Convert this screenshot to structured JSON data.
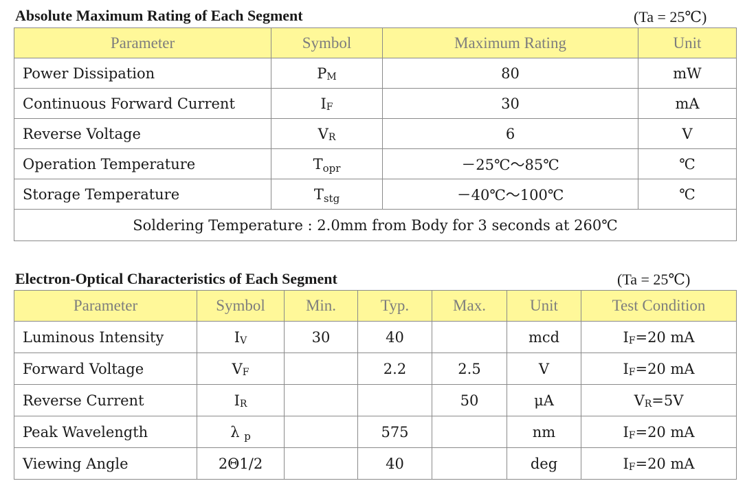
{
  "absolute_max": {
    "title": "Absolute Maximum Rating of Each Segment",
    "ta_note": "(Ta = 25℃)",
    "headers": [
      "Parameter",
      "Symbol",
      "Maximum Rating",
      "Unit"
    ],
    "rows": [
      {
        "parameter": "Power Dissipation",
        "symbol_main": "P",
        "symbol_sub": "M",
        "rating": "80",
        "unit": "mW"
      },
      {
        "parameter": "Continuous Forward Current",
        "symbol_main": "I",
        "symbol_sub": "F",
        "rating": "30",
        "unit": "mA"
      },
      {
        "parameter": "Reverse Voltage",
        "symbol_main": "V",
        "symbol_sub": "R",
        "rating": "6",
        "unit": "V"
      },
      {
        "parameter": "Operation Temperature",
        "symbol_main": "T",
        "symbol_sub": "opr",
        "rating": "－25℃～85℃",
        "unit": "℃"
      },
      {
        "parameter": "Storage Temperature",
        "symbol_main": "T",
        "symbol_sub": "stg",
        "rating": "－40℃～100℃",
        "unit": "℃"
      }
    ],
    "note": "Soldering Temperature : 2.0mm from Body for 3 seconds at 260℃"
  },
  "electro_optical": {
    "title": "Electron-Optical Characteristics of Each Segment",
    "ta_note": "(Ta = 25℃)",
    "headers": [
      "Parameter",
      "Symbol",
      "Min.",
      "Typ.",
      "Max.",
      "Unit",
      "Test Condition"
    ],
    "rows": [
      {
        "parameter": "Luminous Intensity",
        "symbol_main": "I",
        "symbol_sub": "V",
        "min": "30",
        "typ": "40",
        "max": "",
        "unit": "mcd",
        "cond_main": "I",
        "cond_sub": "F",
        "cond_rest": "=20 mA"
      },
      {
        "parameter": "Forward Voltage",
        "symbol_main": "V",
        "symbol_sub": "F",
        "min": "",
        "typ": "2.2",
        "max": "2.5",
        "unit": "V",
        "cond_main": "I",
        "cond_sub": "F",
        "cond_rest": "=20 mA"
      },
      {
        "parameter": "Reverse Current",
        "symbol_main": "I",
        "symbol_sub": "R",
        "min": "",
        "typ": "",
        "max": "50",
        "unit": "μA",
        "cond_main": "V",
        "cond_sub": "R",
        "cond_rest": "=5V"
      },
      {
        "parameter": "Peak Wavelength",
        "symbol_main": "λ",
        "symbol_sub": "p",
        "min": "",
        "typ": "575",
        "max": "",
        "unit": "nm",
        "cond_main": "I",
        "cond_sub": "F",
        "cond_rest": "=20 mA"
      },
      {
        "parameter": "Viewing Angle",
        "symbol_main": "2Θ1/2",
        "symbol_sub": "",
        "min": "",
        "typ": "40",
        "max": "",
        "unit": "deg",
        "cond_main": "I",
        "cond_sub": "F",
        "cond_rest": "=20 mA"
      }
    ]
  },
  "colors": {
    "header_fill": "#fff899",
    "header_text": "#7d7d7d",
    "border": "#8a8a8a"
  }
}
